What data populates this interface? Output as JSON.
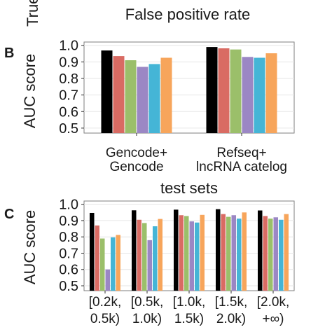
{
  "top_strip": {
    "ylabel_fragment": "True",
    "xlabel": "False positive rate"
  },
  "colors": {
    "palette": [
      "#000000",
      "#d96b63",
      "#9bbf6a",
      "#9b87c4",
      "#45b5d6",
      "#f7a55b"
    ],
    "grid": "#e6e6e6",
    "frame": "#7f7f7f"
  },
  "chart_data": [
    {
      "type": "bar",
      "panel_label": "B",
      "title": "",
      "xlabel": "",
      "ylabel": "AUC score",
      "ylim": [
        0.47,
        1.02
      ],
      "yticks": [
        "1.0",
        "0.9",
        "0.8",
        "0.7",
        "0.6",
        "0.5"
      ],
      "ytick_values": [
        1.0,
        0.9,
        0.8,
        0.7,
        0.6,
        0.5
      ],
      "grid": true,
      "categories": [
        [
          "Gencode+",
          "Gencode"
        ],
        [
          "Refseq+",
          "lncRNA catelog"
        ]
      ],
      "series": [
        {
          "values": [
            0.969,
            0.99
          ]
        },
        {
          "values": [
            0.935,
            0.982
          ]
        },
        {
          "values": [
            0.91,
            0.975
          ]
        },
        {
          "values": [
            0.87,
            0.93
          ]
        },
        {
          "values": [
            0.887,
            0.925
          ]
        },
        {
          "values": [
            0.925,
            0.952
          ]
        }
      ]
    },
    {
      "type": "bar",
      "panel_label": "C",
      "title": "test sets",
      "xlabel": "",
      "ylabel": "AUC score",
      "ylim": [
        0.47,
        1.02
      ],
      "yticks": [
        "1.0",
        "0.9",
        "0.8",
        "0.7",
        "0.6",
        "0.5"
      ],
      "ytick_values": [
        1.0,
        0.9,
        0.8,
        0.7,
        0.6,
        0.5
      ],
      "grid": true,
      "categories": [
        [
          "[0.2k,",
          "0.5k)"
        ],
        [
          "[0.5k,",
          "1.0k)"
        ],
        [
          "[1.0k,",
          "1.5k)"
        ],
        [
          "[1.5k,",
          "2.0k)"
        ],
        [
          "[2.0k,",
          "+∞)"
        ]
      ],
      "series": [
        {
          "values": [
            0.947,
            0.963,
            0.967,
            0.97,
            0.962
          ]
        },
        {
          "values": [
            0.87,
            0.905,
            0.933,
            0.94,
            0.928
          ]
        },
        {
          "values": [
            0.79,
            0.885,
            0.928,
            0.923,
            0.912
          ]
        },
        {
          "values": [
            0.6,
            0.78,
            0.895,
            0.933,
            0.92
          ]
        },
        {
          "values": [
            0.797,
            0.865,
            0.888,
            0.912,
            0.905
          ]
        },
        {
          "values": [
            0.812,
            0.91,
            0.935,
            0.95,
            0.94
          ]
        }
      ]
    }
  ]
}
